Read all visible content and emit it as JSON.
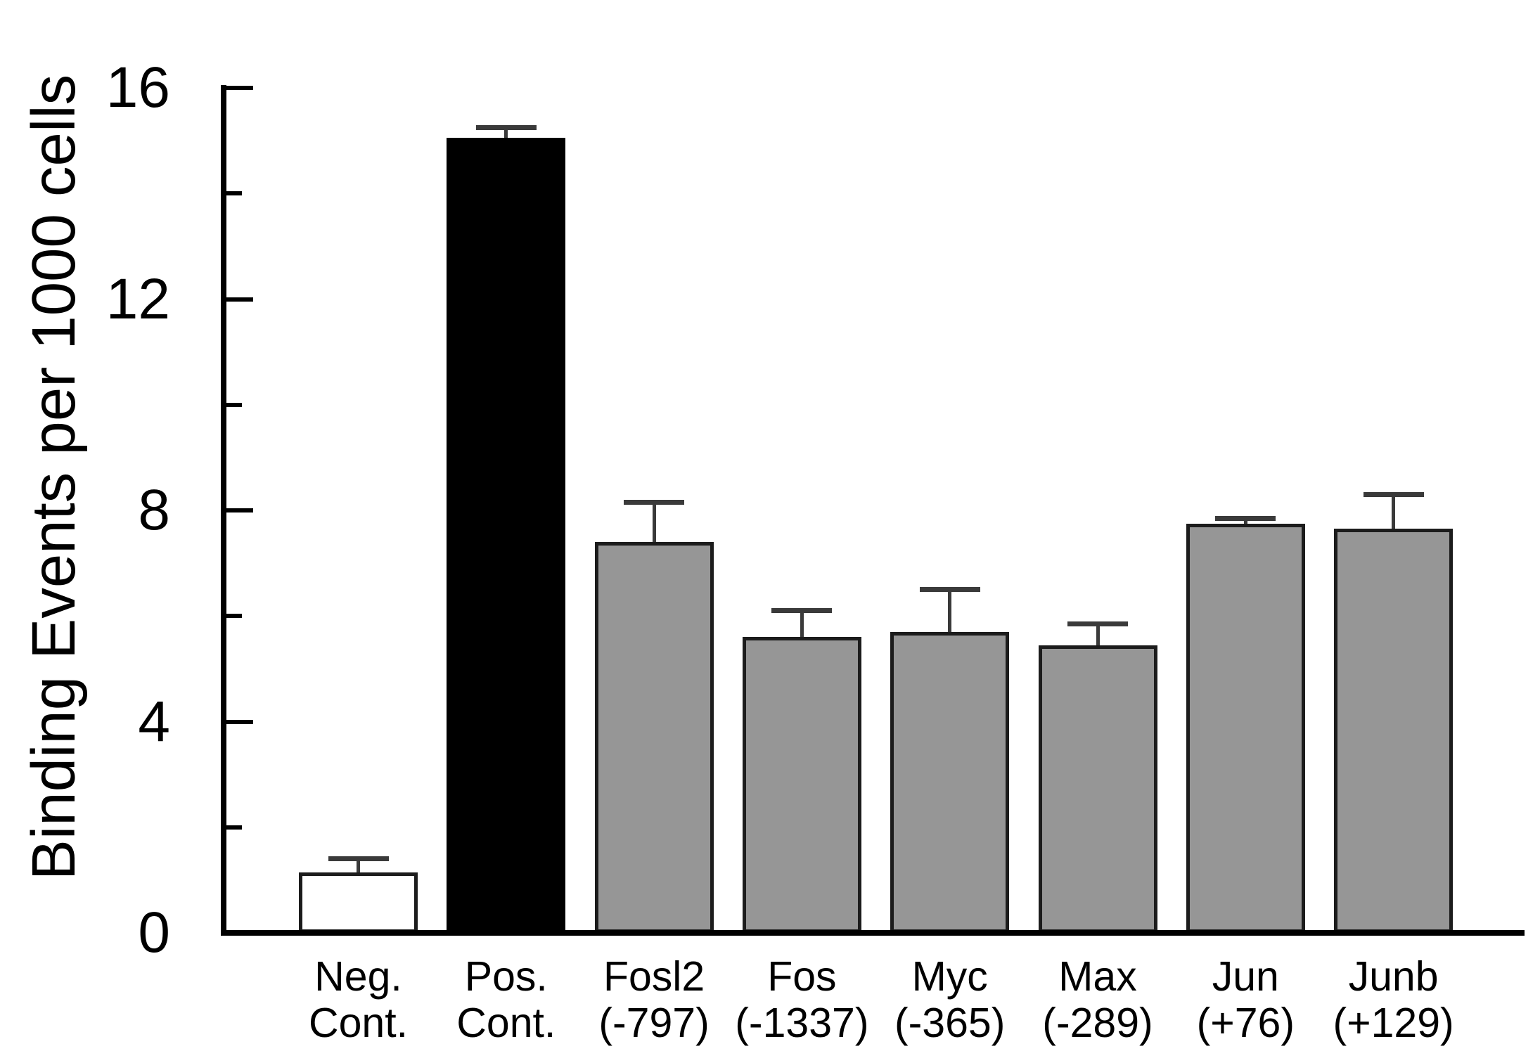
{
  "chart_data": {
    "type": "bar",
    "title": "",
    "xlabel": "",
    "ylabel": "Binding Events per 1000 cells",
    "ylim": [
      0,
      16
    ],
    "yticks_major": [
      0,
      4,
      8,
      12,
      16
    ],
    "yticks_minor": [
      2,
      6,
      10,
      14
    ],
    "grid": false,
    "legend": false,
    "error_bars": "upper only, cap at top",
    "colors": {
      "axis": "#000000",
      "bar_border": "#1c1c1c",
      "error_bar": "#3a3a3a",
      "negative_control_fill": "#ffffff",
      "positive_control_fill": "#000000",
      "sample_fill": "#969696",
      "background": "#ffffff"
    },
    "bars": [
      {
        "label_line1": "Neg.",
        "label_line2": "Cont.",
        "value": 1.15,
        "error_up": 0.25,
        "fill": "#ffffff"
      },
      {
        "label_line1": "Pos.",
        "label_line2": "Cont.",
        "value": 15.05,
        "error_up": 0.2,
        "fill": "#000000"
      },
      {
        "label_line1": "Fosl2",
        "label_line2": "(-797)",
        "value": 7.4,
        "error_up": 0.75,
        "fill": "#969696"
      },
      {
        "label_line1": "Fos",
        "label_line2": "(-1337)",
        "value": 5.6,
        "error_up": 0.5,
        "fill": "#969696"
      },
      {
        "label_line1": "Myc",
        "label_line2": "(-365)",
        "value": 5.7,
        "error_up": 0.8,
        "fill": "#969696"
      },
      {
        "label_line1": "Max",
        "label_line2": "(-289)",
        "value": 5.45,
        "error_up": 0.4,
        "fill": "#969696"
      },
      {
        "label_line1": "Jun",
        "label_line2": "(+76)",
        "value": 7.75,
        "error_up": 0.1,
        "fill": "#969696"
      },
      {
        "label_line1": "Junb",
        "label_line2": "(+129)",
        "value": 7.65,
        "error_up": 0.65,
        "fill": "#969696"
      }
    ]
  }
}
